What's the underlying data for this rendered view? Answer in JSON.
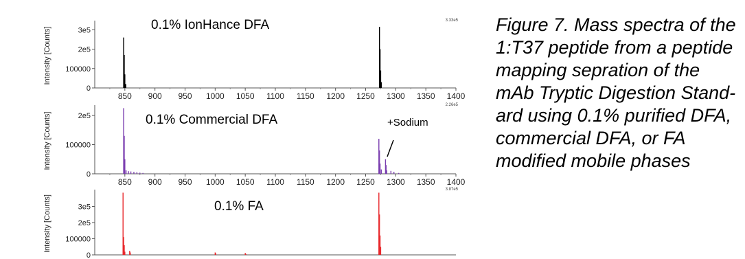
{
  "caption": "Figure 7.  Mass spectra of the 1:T37 peptide from a peptide mapping sepration of the mAb Tryptic Digestion Stand-ard using 0.1% purified DFA, commercial DFA, or FA modified mobile phases",
  "chart_data": [
    {
      "type": "line",
      "title": "0.1% IonHance DFA",
      "max_label": "3.33e5",
      "color": "#000000",
      "ylabel": "Intensity [Counts]",
      "xlim": [
        800,
        1400
      ],
      "ylim": [
        0,
        333000
      ],
      "xticks": [
        850,
        900,
        950,
        1000,
        1050,
        1100,
        1150,
        1200,
        1250,
        1300,
        1350,
        1400
      ],
      "yticks": [
        {
          "v": 0,
          "label": "0"
        },
        {
          "v": 100000,
          "label": "100000"
        },
        {
          "v": 200000,
          "label": "2e5"
        },
        {
          "v": 300000,
          "label": "3e5"
        }
      ],
      "peaks": [
        [
          848,
          260000
        ],
        [
          849,
          170000
        ],
        [
          850,
          70000
        ],
        [
          851.5,
          20000
        ],
        [
          1273,
          315000
        ],
        [
          1274,
          200000
        ],
        [
          1275,
          90000
        ],
        [
          1276,
          30000
        ]
      ]
    },
    {
      "type": "line",
      "title": "0.1% Commercial DFA",
      "max_label": "2.26e5",
      "annotation": "+Sodium",
      "color": "#7b3fb0",
      "ylabel": "Intensity [Counts]",
      "xlim": [
        800,
        1400
      ],
      "ylim": [
        0,
        226000
      ],
      "xticks": [
        850,
        900,
        950,
        1000,
        1050,
        1100,
        1150,
        1200,
        1250,
        1300,
        1350,
        1400
      ],
      "yticks": [
        {
          "v": 0,
          "label": "0"
        },
        {
          "v": 100000,
          "label": "100000"
        },
        {
          "v": 200000,
          "label": "2e5"
        }
      ],
      "peaks": [
        [
          848,
          225000
        ],
        [
          849,
          130000
        ],
        [
          850,
          50000
        ],
        [
          852,
          12000
        ],
        [
          856,
          9000
        ],
        [
          860,
          8000
        ],
        [
          865,
          7000
        ],
        [
          870,
          6000
        ],
        [
          875,
          4000
        ],
        [
          880,
          3000
        ],
        [
          1272,
          120000
        ],
        [
          1273,
          80000
        ],
        [
          1274,
          35000
        ],
        [
          1276,
          15000
        ],
        [
          1283,
          50000
        ],
        [
          1284,
          30000
        ],
        [
          1285,
          12000
        ],
        [
          1292,
          10000
        ],
        [
          1297,
          7000
        ],
        [
          1305,
          3000
        ]
      ]
    },
    {
      "type": "line",
      "title": "0.1% FA",
      "max_label": "3.87e5",
      "color": "#e8292d",
      "ylabel": "Intensity [Counts]",
      "xlim": [
        800,
        1400
      ],
      "ylim": [
        0,
        387000
      ],
      "yticks": [
        {
          "v": 0,
          "label": "0"
        },
        {
          "v": 100000,
          "label": "100000"
        },
        {
          "v": 200000,
          "label": "2e5"
        },
        {
          "v": 300000,
          "label": "3e5"
        }
      ],
      "peaks": [
        [
          847,
          385000
        ],
        [
          848,
          110000
        ],
        [
          849,
          60000
        ],
        [
          850,
          20000
        ],
        [
          858,
          25000
        ],
        [
          859,
          15000
        ],
        [
          1000,
          15000
        ],
        [
          1001,
          10000
        ],
        [
          1050,
          12000
        ],
        [
          1051,
          6000
        ],
        [
          1272,
          385000
        ],
        [
          1273,
          250000
        ],
        [
          1274,
          120000
        ],
        [
          1275,
          50000
        ]
      ]
    }
  ]
}
